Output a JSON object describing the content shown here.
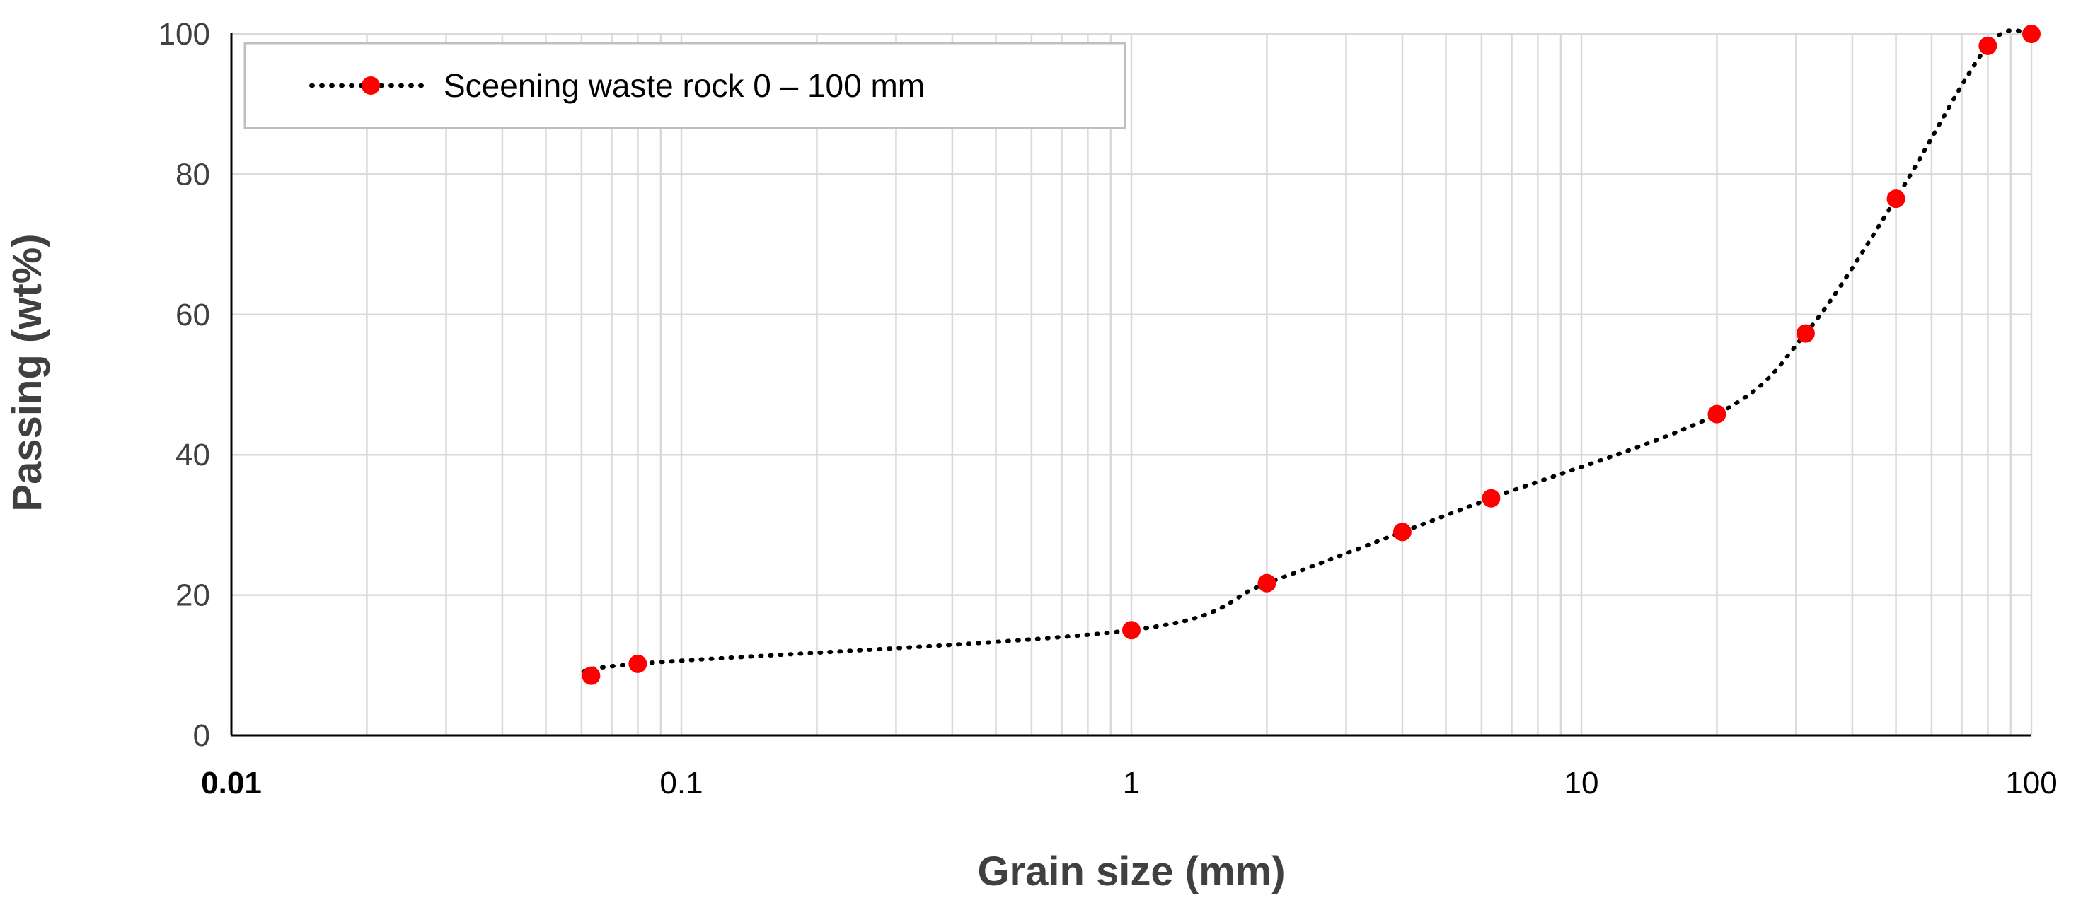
{
  "chart_data": {
    "type": "scatter",
    "xscale": "log",
    "xlabel": "Grain size (mm)",
    "ylabel": "Passing (wt%)",
    "xlim": [
      0.01,
      100
    ],
    "ylim": [
      0,
      100
    ],
    "x_ticks": [
      0.01,
      0.1,
      1,
      10,
      100
    ],
    "x_tick_labels": [
      "0.01",
      "0.1",
      "1",
      "10",
      "100"
    ],
    "y_ticks": [
      0,
      20,
      40,
      60,
      80,
      100
    ],
    "y_tick_labels": [
      "0",
      "20",
      "40",
      "60",
      "80",
      "100"
    ],
    "grid": true,
    "legend_position": "top-left",
    "series": [
      {
        "name": "Sceening waste rock  0 – 100  mm",
        "marker_color": "#ff0000",
        "line_color": "#000000",
        "line_style": "dotted",
        "x": [
          0.063,
          0.08,
          1,
          2,
          4,
          6.3,
          20,
          31.5,
          50,
          80,
          100
        ],
        "y": [
          8.5,
          10.2,
          15.0,
          21.7,
          29.0,
          33.8,
          45.8,
          57.3,
          76.5,
          98.3,
          100
        ]
      }
    ]
  }
}
